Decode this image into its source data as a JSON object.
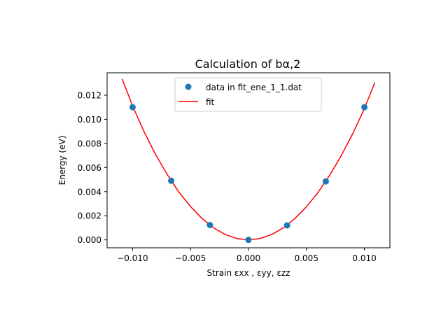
{
  "chart_data": {
    "type": "scatter",
    "title": "Calculation of bα,2",
    "xlabel": "Strain εxx , εyy, εzz",
    "ylabel": "Energy (eV)",
    "xlim": [
      -0.0122,
      0.0122
    ],
    "ylim": [
      -0.00066,
      0.01386
    ],
    "x_ticks": [
      -0.01,
      -0.005,
      0.0,
      0.005,
      0.01
    ],
    "x_tick_labels": [
      "−0.010",
      "−0.005",
      "0.000",
      "0.005",
      "0.010"
    ],
    "y_ticks": [
      0.0,
      0.002,
      0.004,
      0.006,
      0.008,
      0.01,
      0.012
    ],
    "y_tick_labels": [
      "0.000",
      "0.002",
      "0.004",
      "0.006",
      "0.008",
      "0.010",
      "0.012"
    ],
    "grid": false,
    "legend_position": "top-center",
    "series": [
      {
        "name": "data in fit_ene_1_1.dat",
        "kind": "scatter",
        "color": "#1f77b4",
        "x": [
          -0.01,
          -0.00667,
          -0.00333,
          0.0,
          0.00333,
          0.00667,
          0.01
        ],
        "y": [
          0.011,
          0.0049,
          0.00123,
          0.0,
          0.0012,
          0.00485,
          0.011
        ]
      },
      {
        "name": "fit",
        "kind": "line",
        "color": "#ff0000",
        "x": [
          -0.0109,
          -0.01,
          -0.009,
          -0.008,
          -0.007,
          -0.006,
          -0.005,
          -0.004,
          -0.003,
          -0.002,
          -0.001,
          0.0,
          0.001,
          0.002,
          0.003,
          0.004,
          0.005,
          0.006,
          0.007,
          0.008,
          0.009,
          0.01,
          0.0109
        ],
        "y": [
          0.01335,
          0.01111,
          0.00895,
          0.00705,
          0.0054,
          0.00395,
          0.00276,
          0.00176,
          0.00099,
          0.00044,
          0.00011,
          0.0,
          0.00011,
          0.00044,
          0.00099,
          0.00176,
          0.00275,
          0.00393,
          0.00535,
          0.00698,
          0.00882,
          0.01089,
          0.01305
        ]
      }
    ]
  }
}
